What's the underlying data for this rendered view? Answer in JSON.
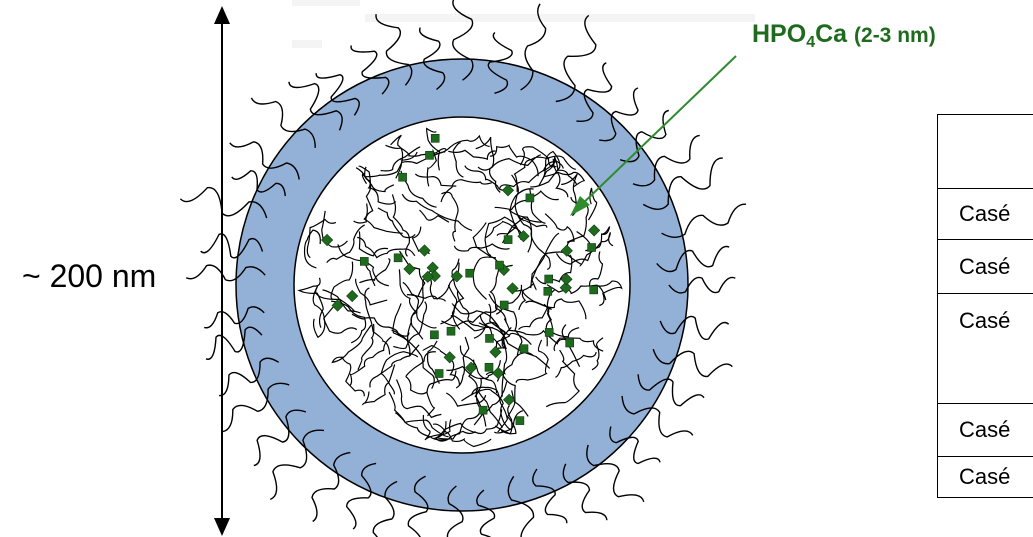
{
  "size_label": "~ 200 nm",
  "phosphate_label": {
    "prefix": "HPO",
    "subscript": "4",
    "suffix": "Ca",
    "size": "(2-3 nm)"
  },
  "table": {
    "header": "",
    "rows": [
      "Casé",
      "Casé",
      "Casé",
      "Casé",
      "Casé"
    ]
  },
  "colors": {
    "shell": "#93b0d6",
    "shell_border": "#000000",
    "core": "#ffffff",
    "granule": "#1e6b1e",
    "arrow": "#2e8b2e",
    "label": "#1e6b1e"
  }
}
